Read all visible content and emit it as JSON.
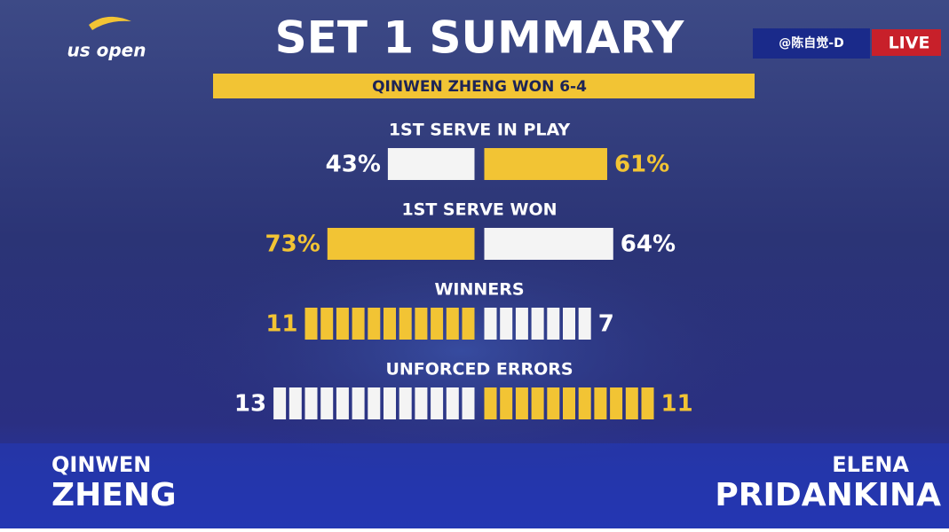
{
  "logo": "us open",
  "title": "SET 1 SUMMARY",
  "banner": "QINWEN ZHENG WON 6-4",
  "watermark": "@陈自觉-D",
  "live": "LIVE",
  "players": {
    "left": {
      "first": "QINWEN",
      "last": "ZHENG"
    },
    "right": {
      "first": "ELENA",
      "last": "PRIDANKINA"
    }
  },
  "stats": [
    {
      "label": "1ST SERVE IN PLAY",
      "style": "bar",
      "left": {
        "value": 43,
        "label": "43%",
        "color": "#f4f4f4"
      },
      "right": {
        "value": 61,
        "label": "61%",
        "color": "#f2c434"
      }
    },
    {
      "label": "1ST SERVE WON",
      "style": "bar",
      "left": {
        "value": 73,
        "label": "73%",
        "color": "#f2c434"
      },
      "right": {
        "value": 64,
        "label": "64%",
        "color": "#f4f4f4"
      }
    },
    {
      "label": "WINNERS",
      "style": "segments",
      "left": {
        "value": 11,
        "label": "11",
        "color": "#f2c434"
      },
      "right": {
        "value": 7,
        "label": "7",
        "color": "#f4f4f4"
      }
    },
    {
      "label": "UNFORCED ERRORS",
      "style": "segments",
      "left": {
        "value": 13,
        "label": "13",
        "color": "#f4f4f4"
      },
      "right": {
        "value": 11,
        "label": "11",
        "color": "#f2c434"
      }
    }
  ]
}
